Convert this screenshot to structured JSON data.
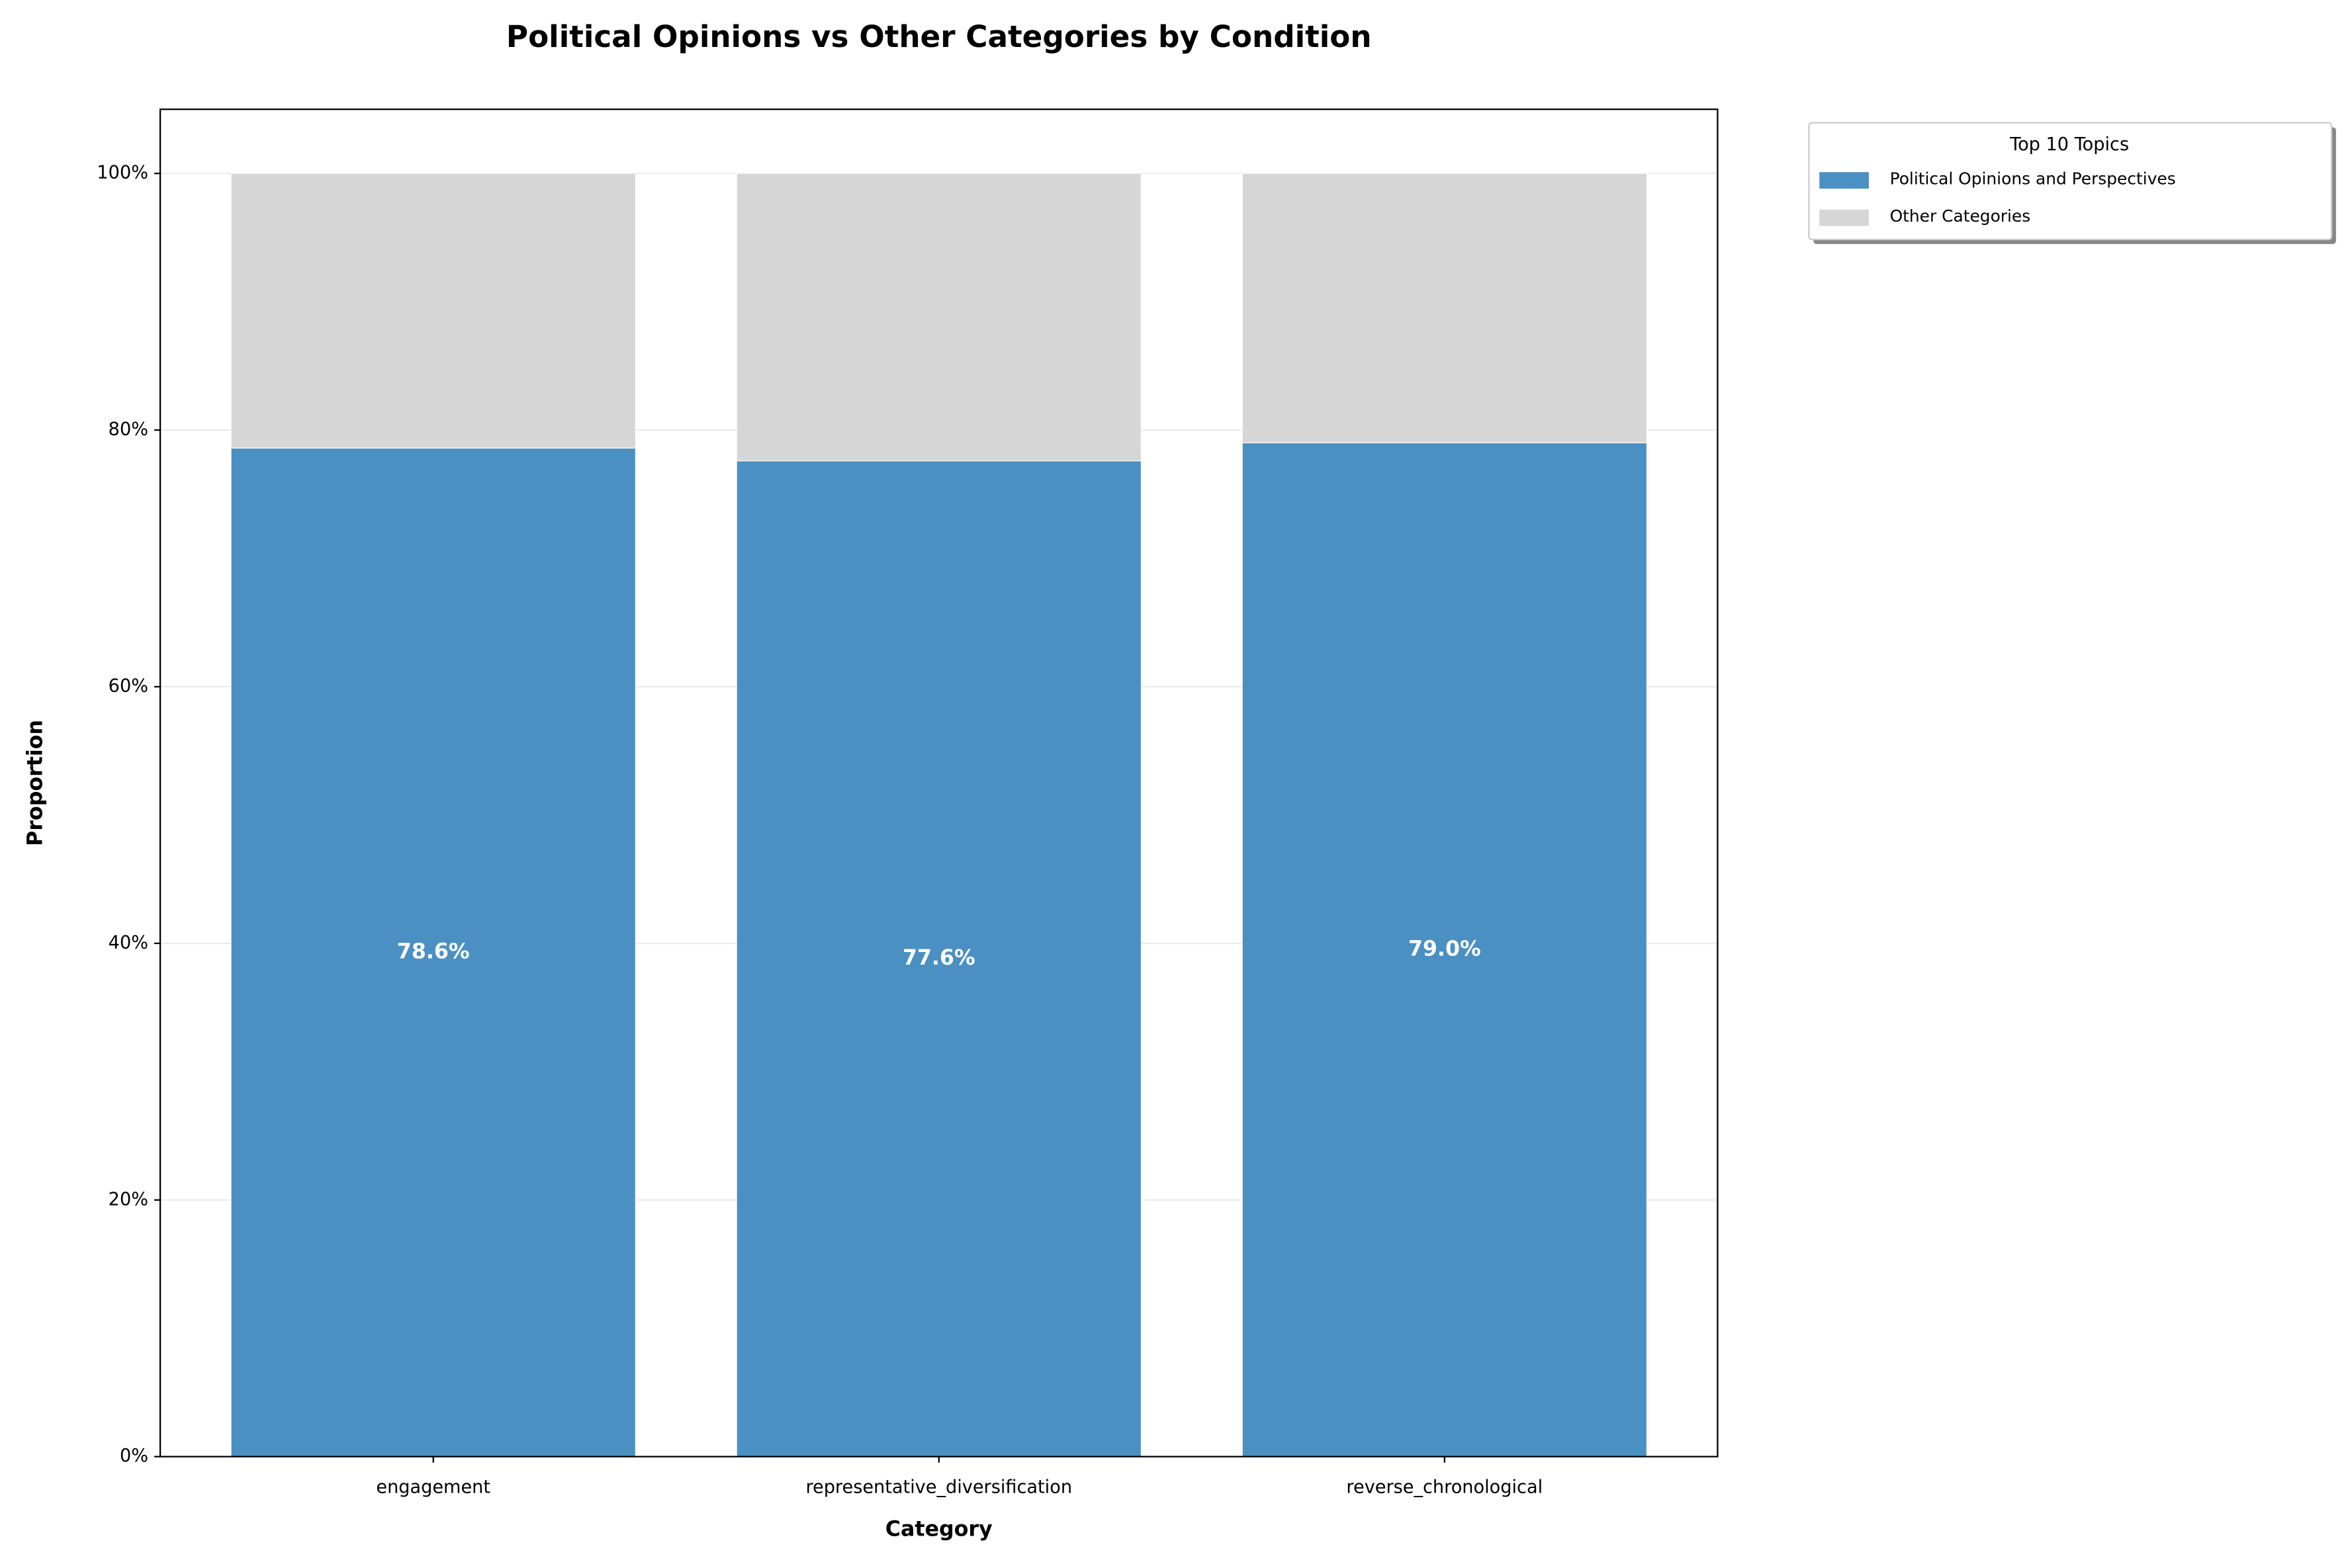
{
  "chart_data": {
    "type": "bar",
    "stacked": true,
    "title": "Political Opinions vs Other Categories by Condition",
    "x_label": "Category",
    "y_label": "Proportion",
    "legend_title": "Top 10 Topics",
    "legend_position": "outside-upper-right",
    "categories": [
      "engagement",
      "representative_diversification",
      "reverse_chronological"
    ],
    "series": [
      {
        "name": "Political Opinions and Perspectives",
        "color": "#4a90c2",
        "values": [
          78.6,
          77.6,
          79.0
        ],
        "value_labels": [
          "78.6%",
          "77.6%",
          "79.0%"
        ]
      },
      {
        "name": "Other Categories",
        "color": "#d6d6d6",
        "values": [
          21.4,
          22.4,
          21.0
        ]
      }
    ],
    "ylim": [
      0,
      105
    ],
    "yticks": [
      {
        "value": 0,
        "label": "0%"
      },
      {
        "value": 20,
        "label": "20%"
      },
      {
        "value": 40,
        "label": "40%"
      },
      {
        "value": 60,
        "label": "60%"
      },
      {
        "value": 80,
        "label": "80%"
      },
      {
        "value": 100,
        "label": "100%"
      }
    ],
    "grid": true
  }
}
